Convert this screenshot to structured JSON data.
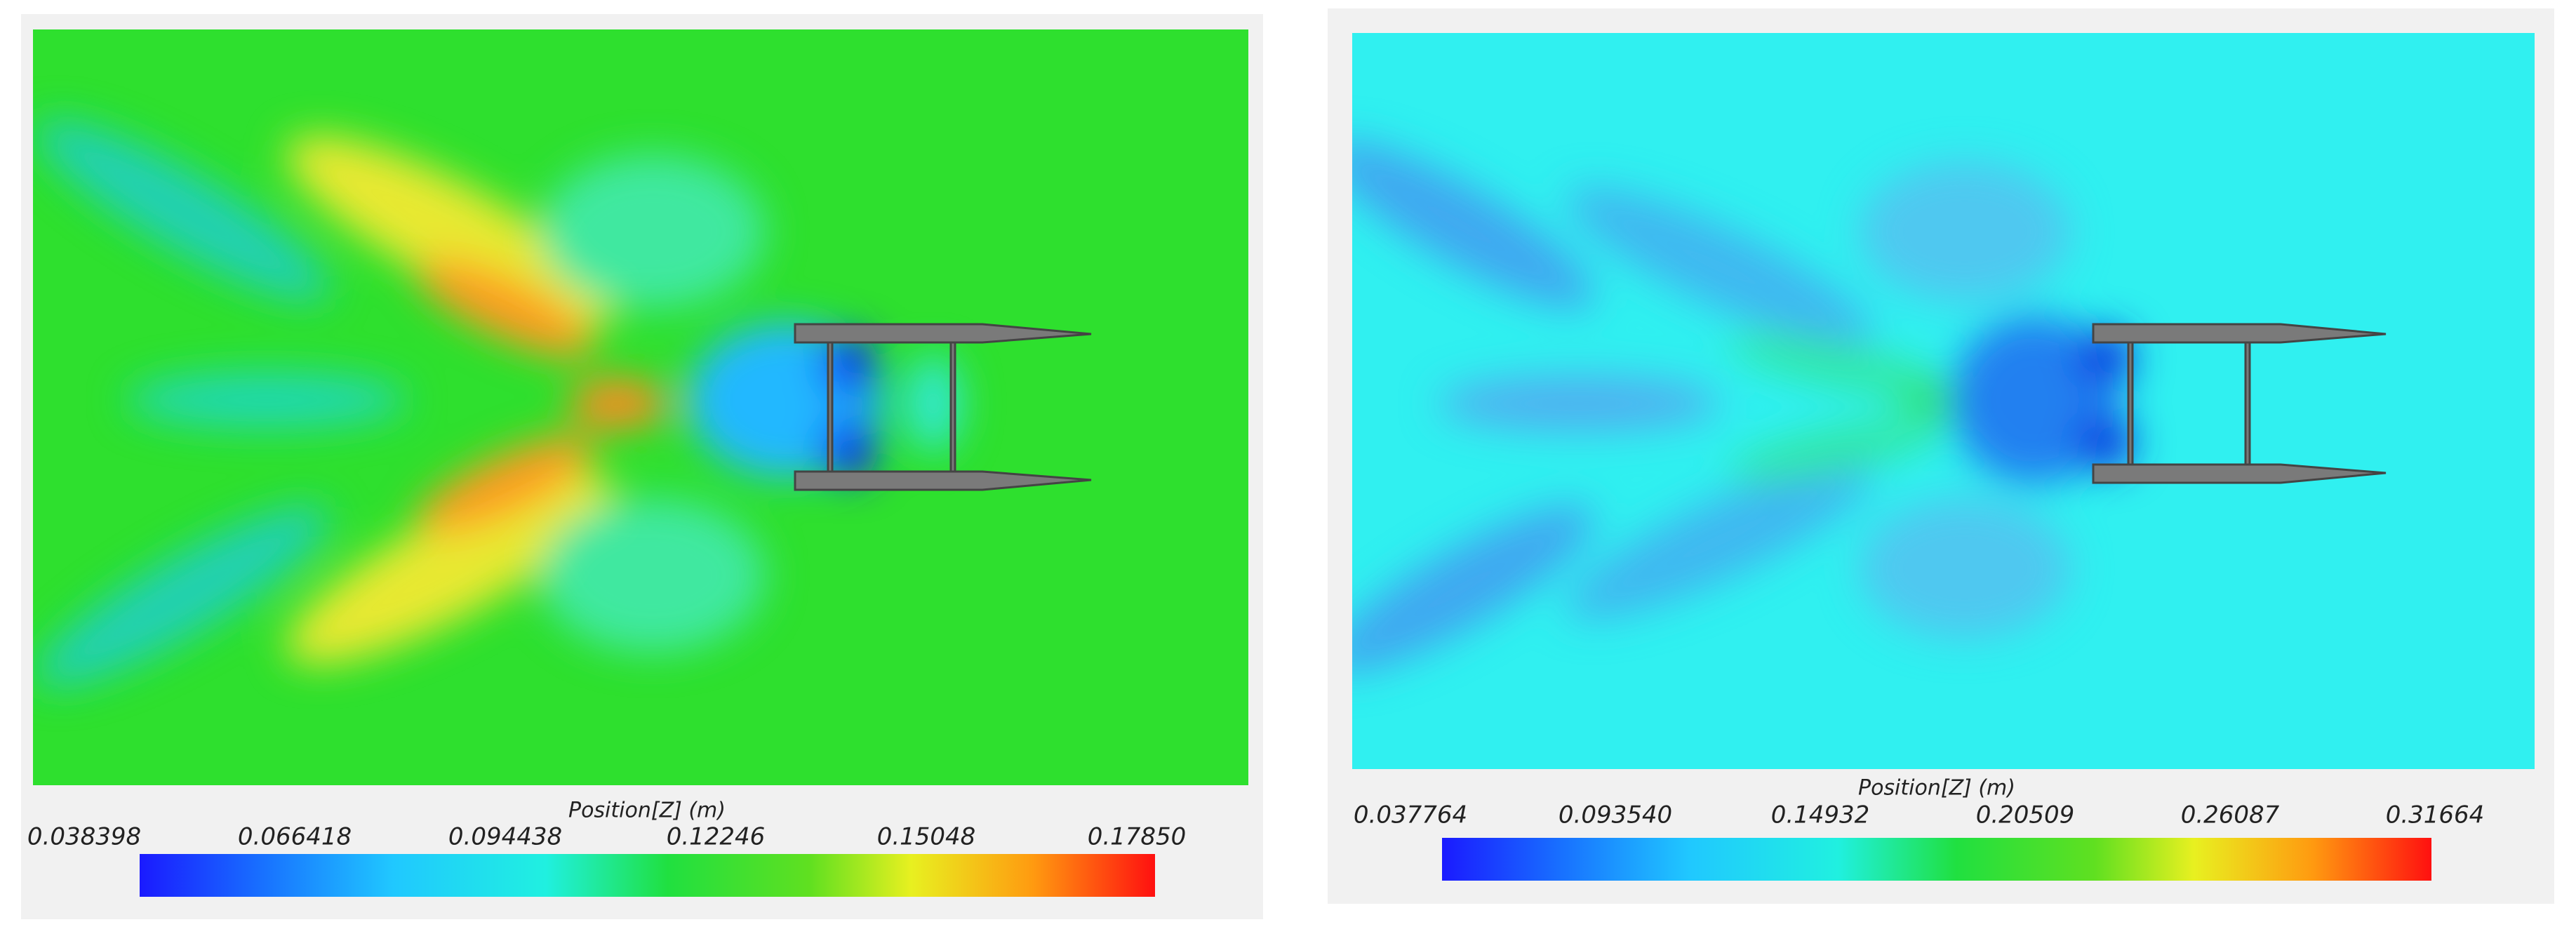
{
  "panels": [
    {
      "colorbar": {
        "label": "Position[Z] (m)",
        "ticks": [
          "0.038398",
          "0.066418",
          "0.094438",
          "0.12246",
          "0.15048",
          "0.17850"
        ]
      }
    },
    {
      "colorbar": {
        "label": "Position[Z] (m)",
        "ticks": [
          "0.037764",
          "0.093540",
          "0.14932",
          "0.20509",
          "0.26087",
          "0.31664"
        ]
      }
    }
  ]
}
